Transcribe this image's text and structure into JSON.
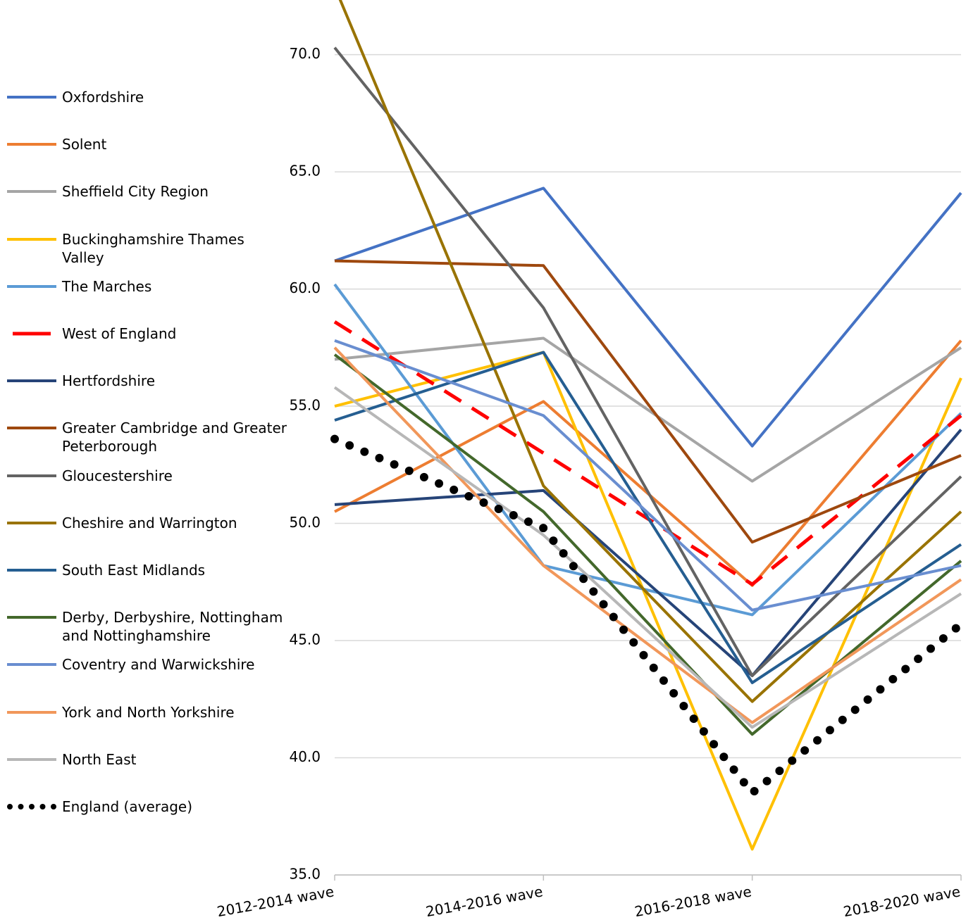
{
  "chart_data": {
    "type": "line",
    "categories": [
      "2012-2014 wave",
      "2014-2016 wave",
      "2016-2018 wave",
      "2018-2020 wave"
    ],
    "ylim": [
      35,
      72
    ],
    "yticks": [
      {
        "value": 35,
        "label": "35.0"
      },
      {
        "value": 40,
        "label": "40.0"
      },
      {
        "value": 45,
        "label": "45.0"
      },
      {
        "value": 50,
        "label": "50.0"
      },
      {
        "value": 55,
        "label": "55.0"
      },
      {
        "value": 60,
        "label": "60.0"
      },
      {
        "value": 65,
        "label": "65.0"
      },
      {
        "value": 70,
        "label": "70.0"
      }
    ],
    "grid": true,
    "legend": "left",
    "series": [
      {
        "name": "Oxfordshire",
        "color": "#4472c4",
        "values": [
          61.2,
          64.3,
          53.3,
          64.1
        ]
      },
      {
        "name": "Solent",
        "color": "#ed7d31",
        "values": [
          50.5,
          55.2,
          47.35,
          57.8
        ]
      },
      {
        "name": "Sheffield City Region",
        "color": "#a5a5a5",
        "values": [
          57.0,
          57.9,
          51.8,
          57.5
        ]
      },
      {
        "name": "Buckinghamshire Thames Valley",
        "color": "#ffc000",
        "values": [
          55.0,
          57.3,
          36.1,
          56.2
        ]
      },
      {
        "name": "The Marches",
        "color": "#5b9bd5",
        "values": [
          60.2,
          48.2,
          46.1,
          54.7
        ]
      },
      {
        "name": "West of England",
        "color": "#ff0000",
        "dash": "dashed",
        "values": [
          58.6,
          53.0,
          47.4,
          54.6
        ]
      },
      {
        "name": "Hertfordshire",
        "color": "#264478",
        "values": [
          50.8,
          51.4,
          43.5,
          54.0
        ]
      },
      {
        "name": "Greater Cambridge and Greater Peterborough",
        "color": "#9e480e",
        "values": [
          61.2,
          61.0,
          49.2,
          52.9
        ]
      },
      {
        "name": "Gloucestershire",
        "color": "#636363",
        "values": [
          70.3,
          59.2,
          43.5,
          52.0
        ]
      },
      {
        "name": "Cheshire and Warrington",
        "color": "#997300",
        "values": [
          72.9,
          51.6,
          42.4,
          50.5
        ]
      },
      {
        "name": "South East Midlands",
        "color": "#255e91",
        "values": [
          54.4,
          57.3,
          43.2,
          49.1
        ]
      },
      {
        "name": "Derby, Derbyshire, Nottingham and Nottinghamshire",
        "color": "#43682b",
        "values": [
          57.2,
          50.5,
          41.0,
          48.4
        ]
      },
      {
        "name": "Coventry and Warwickshire",
        "color": "#698ed0",
        "values": [
          57.8,
          54.6,
          46.3,
          48.2
        ]
      },
      {
        "name": "York and North Yorkshire",
        "color": "#f1975a",
        "values": [
          57.5,
          48.2,
          41.5,
          47.6
        ]
      },
      {
        "name": "North East",
        "color": "#b7b7b7",
        "values": [
          55.8,
          49.5,
          41.3,
          47.0
        ]
      },
      {
        "name": "England (average)",
        "color": "#000000",
        "dash": "dotted",
        "values": [
          53.6,
          49.8,
          38.5,
          45.7
        ]
      }
    ]
  }
}
